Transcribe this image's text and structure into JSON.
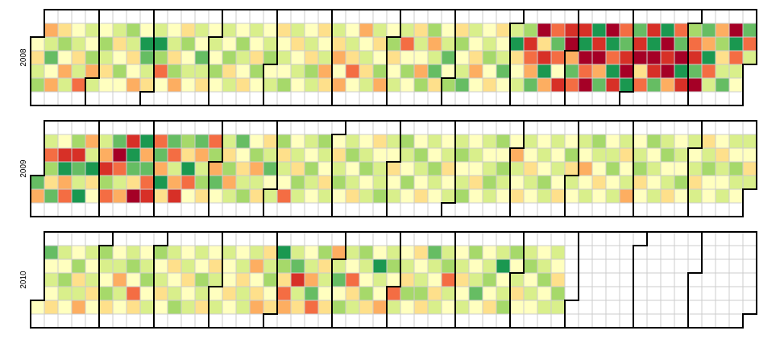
{
  "chart_data": {
    "type": "calendar",
    "colors": [
      "#a50026",
      "#d73027",
      "#f46d43",
      "#fdae61",
      "#fee08b",
      "#ffffbf",
      "#d9ef8b",
      "#a6d96a",
      "#66bd63",
      "#1a9850",
      "#006837"
    ],
    "years": [
      {
        "year": 2008,
        "values": [
          5,
          4,
          6,
          7,
          null,
          null,
          3,
          6,
          8,
          5,
          3,
          null,
          null,
          4,
          7,
          5,
          3,
          6,
          null,
          null,
          5,
          6,
          4,
          6,
          2,
          null,
          null,
          6,
          5,
          7,
          3,
          6,
          null,
          null,
          5,
          7,
          6,
          4,
          5,
          null,
          null,
          6,
          4,
          5,
          7,
          5,
          null,
          null,
          7,
          6,
          4,
          5,
          3,
          null,
          null,
          5,
          9,
          8,
          6,
          4,
          null,
          null,
          6,
          9,
          7,
          2,
          5,
          null,
          null,
          5,
          6,
          4,
          7,
          3,
          null,
          null,
          4,
          7,
          5,
          6,
          5,
          null,
          null,
          6,
          5,
          8,
          6,
          4,
          null,
          null,
          5,
          6,
          5,
          7,
          5,
          null,
          null,
          6,
          5,
          7,
          4,
          6,
          null,
          null,
          5,
          7,
          6,
          5,
          4,
          null,
          null,
          6,
          5,
          4,
          7,
          5,
          null,
          null,
          5,
          6,
          7,
          5,
          6,
          null,
          null,
          4,
          5,
          6,
          5,
          7,
          null,
          null,
          6,
          4,
          5,
          6,
          5,
          null,
          null,
          5,
          6,
          4,
          7,
          6,
          null,
          null,
          4,
          5,
          6,
          3,
          4,
          null,
          null,
          6,
          4,
          3,
          5,
          3,
          null,
          null,
          5,
          6,
          4,
          2,
          5,
          null,
          null,
          3,
          5,
          6,
          4,
          6,
          null,
          null,
          6,
          4,
          5,
          7,
          3,
          null,
          null,
          5,
          7,
          4,
          5,
          6,
          null,
          null,
          6,
          2,
          5,
          7,
          5,
          null,
          null,
          4,
          6,
          5,
          3,
          7,
          null,
          null,
          7,
          3,
          6,
          8,
          4,
          null,
          null,
          5,
          6,
          8,
          5,
          7,
          null,
          null,
          4,
          7,
          5,
          6,
          8,
          null,
          null,
          6,
          5,
          4,
          3,
          5,
          null,
          null,
          5,
          6,
          7,
          5,
          4,
          null,
          null,
          4,
          5,
          6,
          8,
          5,
          null,
          null,
          6,
          9,
          4,
          5,
          6,
          null,
          null,
          7,
          1,
          2,
          3,
          8,
          null,
          null,
          0,
          4,
          1,
          9,
          3,
          null,
          null,
          2,
          8,
          2,
          5,
          1,
          null,
          null,
          1,
          0,
          3,
          8,
          2,
          null,
          null,
          1,
          9,
          0,
          2,
          0,
          null,
          null,
          9,
          1,
          0,
          3,
          8,
          null,
          null,
          0,
          9,
          2,
          9,
          1,
          null,
          null,
          2,
          8,
          1,
          0,
          9,
          null,
          null,
          8,
          1,
          0,
          4,
          2,
          null,
          null,
          1,
          9,
          0,
          1,
          8,
          null,
          null,
          9,
          0,
          1,
          0,
          3,
          null,
          null,
          2,
          8,
          0,
          9,
          1,
          null,
          null,
          7,
          2,
          1,
          8,
          0,
          null,
          null,
          8,
          3,
          9,
          2,
          6,
          null,
          null,
          3,
          7,
          4,
          6,
          8,
          null,
          null,
          0,
          9,
          2,
          6,
          5,
          null,
          null,
          8,
          2,
          6
        ]
      },
      {
        "year": 2009,
        "values": [
          8,
          3,
          null,
          null,
          6,
          2,
          7,
          4,
          8,
          null,
          null,
          5,
          1,
          9,
          3,
          2,
          null,
          null,
          7,
          1,
          8,
          6,
          9,
          null,
          null,
          3,
          6,
          9,
          4,
          5,
          null,
          null,
          6,
          3,
          1,
          7,
          2,
          null,
          null,
          8,
          0,
          2,
          6,
          3,
          null,
          null,
          1,
          9,
          8,
          4,
          0,
          null,
          null,
          9,
          3,
          8,
          2,
          1,
          null,
          null,
          2,
          8,
          3,
          9,
          4,
          null,
          null,
          8,
          2,
          6,
          3,
          1,
          null,
          null,
          7,
          4,
          9,
          2,
          5,
          null,
          null,
          8,
          3,
          6,
          7,
          4,
          null,
          null,
          2,
          7,
          3,
          8,
          5,
          null,
          null,
          6,
          4,
          7,
          3,
          6,
          null,
          null,
          8,
          5,
          4,
          6,
          7,
          null,
          null,
          5,
          7,
          3,
          6,
          4,
          null,
          null,
          4,
          6,
          8,
          5,
          6,
          null,
          null,
          7,
          4,
          6,
          5,
          2,
          null,
          null,
          5,
          6,
          4,
          7,
          6,
          null,
          null,
          6,
          5,
          7,
          6,
          5,
          null,
          null,
          7,
          6,
          5,
          4,
          6,
          null,
          null,
          5,
          4,
          6,
          7,
          5,
          null,
          null,
          6,
          7,
          5,
          6,
          4,
          null,
          null,
          5,
          6,
          7,
          5,
          6,
          null,
          null,
          4,
          5,
          6,
          6,
          7,
          null,
          null,
          6,
          5,
          4,
          5,
          6,
          null,
          null,
          7,
          6,
          5,
          7,
          5,
          null,
          null,
          5,
          7,
          6,
          5,
          4,
          null,
          null,
          6,
          5,
          7,
          6,
          5,
          null,
          null,
          5,
          6,
          4,
          5,
          6,
          null,
          null,
          6,
          7,
          5,
          6,
          7,
          null,
          null,
          5,
          6,
          5,
          4,
          5,
          null,
          null,
          6,
          5,
          6,
          7,
          6,
          null,
          null,
          7,
          5,
          7,
          6,
          5,
          null,
          null,
          5,
          3,
          6,
          5,
          4,
          null,
          null,
          6,
          5,
          4,
          6,
          5,
          null,
          null,
          5,
          6,
          5,
          7,
          6,
          null,
          null,
          6,
          5,
          6,
          5,
          4,
          null,
          null,
          5,
          7,
          4,
          6,
          5,
          null,
          null,
          6,
          5,
          3,
          5,
          6,
          null,
          null,
          7,
          6,
          5,
          4,
          5,
          null,
          null,
          5,
          6,
          7,
          5,
          6,
          null,
          null,
          6,
          4,
          5,
          6,
          3,
          null,
          null,
          5,
          6,
          7,
          4,
          5,
          null,
          null,
          7,
          5,
          6,
          5,
          6,
          null,
          null,
          6,
          7,
          5,
          6,
          4,
          null,
          null,
          5,
          6,
          5,
          7,
          5,
          null,
          null,
          6,
          5,
          6,
          4,
          6,
          null,
          null,
          4,
          6,
          7,
          5,
          5,
          null,
          null,
          5,
          4,
          6,
          5,
          6,
          null,
          null,
          6,
          5,
          7,
          6,
          5,
          null,
          null,
          6,
          5,
          4,
          6
        ]
      },
      {
        "year": 2010,
        "values": [
          5,
          null,
          null,
          8,
          5,
          6,
          5,
          4,
          null,
          null,
          6,
          5,
          7,
          6,
          5,
          null,
          null,
          5,
          7,
          4,
          6,
          3,
          null,
          null,
          6,
          5,
          6,
          4,
          5,
          null,
          null,
          7,
          6,
          5,
          7,
          4,
          null,
          null,
          5,
          6,
          3,
          6,
          5,
          null,
          null,
          6,
          7,
          5,
          2,
          4,
          null,
          null,
          5,
          6,
          7,
          5,
          6,
          null,
          null,
          7,
          5,
          6,
          4,
          5,
          null,
          null,
          6,
          4,
          5,
          6,
          7,
          null,
          null,
          5,
          6,
          4,
          5,
          6,
          null,
          null,
          6,
          5,
          7,
          6,
          4,
          null,
          null,
          5,
          4,
          6,
          5,
          6,
          null,
          null,
          6,
          5,
          5,
          4,
          5,
          null,
          null,
          5,
          6,
          4,
          6,
          6,
          null,
          null,
          6,
          3,
          5,
          4,
          3,
          null,
          null,
          4,
          6,
          7,
          5,
          4,
          null,
          null,
          9,
          7,
          4,
          2,
          3,
          null,
          null,
          6,
          8,
          1,
          6,
          4,
          null,
          null,
          5,
          6,
          3,
          8,
          2,
          null,
          null,
          7,
          4,
          6,
          5,
          4,
          null,
          null,
          3,
          6,
          8,
          5,
          7,
          null,
          null,
          6,
          5,
          2,
          4,
          6,
          null,
          null,
          7,
          6,
          5,
          7,
          4,
          null,
          null,
          5,
          9,
          6,
          5,
          3,
          null,
          null,
          6,
          7,
          5,
          2,
          6,
          null,
          null,
          5,
          6,
          4,
          7,
          5,
          null,
          null,
          4,
          5,
          6,
          7,
          4,
          null,
          null,
          8,
          6,
          5,
          4,
          6,
          null,
          null,
          6,
          7,
          2,
          6,
          5,
          null,
          null,
          5,
          6,
          4,
          5,
          6,
          null,
          null,
          7,
          5,
          6,
          8,
          5,
          null,
          null,
          5,
          6,
          7,
          5,
          4,
          null,
          null,
          6,
          9,
          5,
          6,
          7,
          null,
          null,
          7,
          5,
          6,
          4,
          5,
          null,
          null,
          6,
          7,
          5,
          6,
          5,
          null,
          null,
          5,
          6,
          7,
          5,
          6,
          null,
          null,
          6,
          5,
          4,
          7,
          6
        ]
      }
    ]
  }
}
